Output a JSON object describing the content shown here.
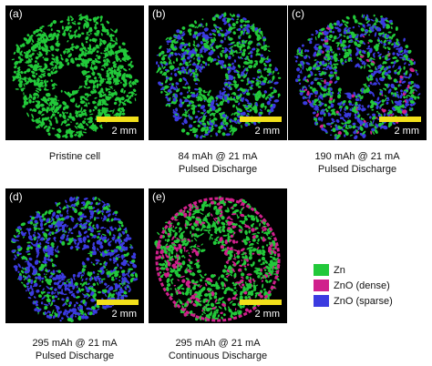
{
  "panels": [
    {
      "label": "(a)",
      "scale": "2 mm",
      "caption": [
        "Pristine cell"
      ],
      "mix": {
        "zn": 1.0,
        "dense": 0.0,
        "sparse": 0.0,
        "rim": 0
      }
    },
    {
      "label": "(b)",
      "scale": "2 mm",
      "caption": [
        "84 mAh @ 21 mA",
        "Pulsed Discharge"
      ],
      "mix": {
        "zn": 0.6,
        "dense": 0.0,
        "sparse": 0.4,
        "rim": 0
      }
    },
    {
      "label": "(c)",
      "scale": "2 mm",
      "caption": [
        "190 mAh @ 21 mA",
        "Pulsed Discharge"
      ],
      "mix": {
        "zn": 0.45,
        "dense": 0.05,
        "sparse": 0.5,
        "rim": 0
      }
    },
    {
      "label": "(d)",
      "scale": "2 mm",
      "caption": [
        "295 mAh @ 21 mA",
        "Pulsed Discharge"
      ],
      "mix": {
        "zn": 0.35,
        "dense": 0.0,
        "sparse": 0.65,
        "rim": 0
      }
    },
    {
      "label": "(e)",
      "scale": "2 mm",
      "caption": [
        "295 mAh @ 21 mA",
        "Continuous Discharge"
      ],
      "mix": {
        "zn": 0.72,
        "dense": 0.28,
        "sparse": 0.0,
        "rim": 1
      }
    }
  ],
  "legend": [
    {
      "label": "Zn",
      "color": "#22c93a"
    },
    {
      "label": "ZnO (dense)",
      "color": "#d0208c"
    },
    {
      "label": "ZnO (sparse)",
      "color": "#3b3be0"
    }
  ]
}
